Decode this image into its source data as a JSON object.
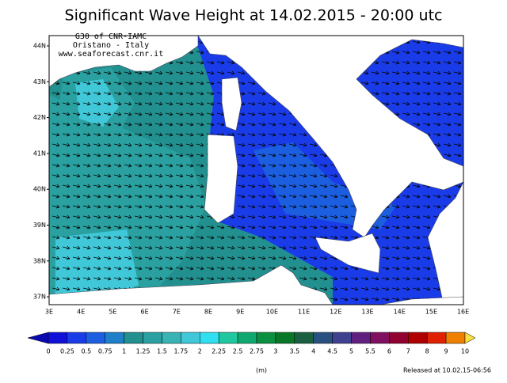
{
  "title": "Significant Wave Height at 14.02.2015 - 20:00 utc",
  "credits": [
    "G30 of CNR-IAMC",
    "Oristano - Italy",
    "www.seaforecast.cnr.it"
  ],
  "lat_labels": [
    "44N",
    "43N",
    "42N",
    "41N",
    "40N",
    "39N",
    "38N",
    "37N"
  ],
  "lon_labels": [
    "3E",
    "4E",
    "5E",
    "6E",
    "7E",
    "8E",
    "9E",
    "10E",
    "11E",
    "12E",
    "13E",
    "14E",
    "15E",
    "16E"
  ],
  "colorbar": {
    "labels": [
      "0",
      "0.25",
      "0.5",
      "0.75",
      "1",
      "1.25",
      "1.5",
      "1.75",
      "2",
      "2.25",
      "2.5",
      "2.75",
      "3",
      "3.5",
      "4",
      "4.5",
      "5",
      "5.5",
      "6",
      "7",
      "8",
      "9",
      "10"
    ],
    "colors": [
      "#0a0ab0",
      "#1010d8",
      "#1a3ce8",
      "#1c5ee0",
      "#1f7fc8",
      "#22908f",
      "#2aa0a0",
      "#38b4b4",
      "#40c8d8",
      "#30e0f0",
      "#20c8a0",
      "#10a870",
      "#0a9040",
      "#087828",
      "#1a6040",
      "#2a5080",
      "#404090",
      "#602080",
      "#801060",
      "#900030",
      "#b00000",
      "#e02000",
      "#f08000",
      "#f8e040"
    ]
  },
  "unit": "(m)",
  "released": "Released at 10.02.15-06:56"
}
